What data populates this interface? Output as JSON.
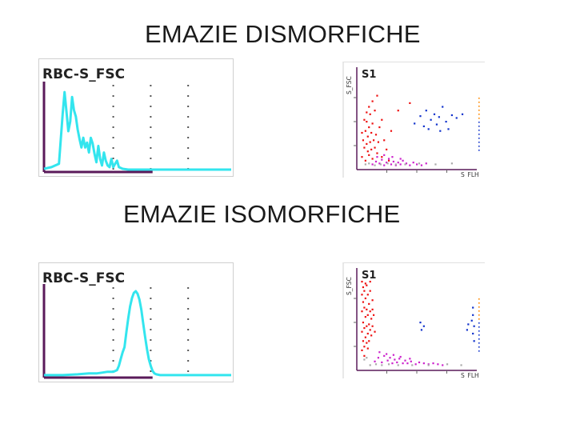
{
  "titles": {
    "dysmorphic": "EMAZIE DISMORFICHE",
    "isomorphic": "EMAZIE ISOMORFICHE"
  },
  "colors": {
    "histogram_line": "#33e5ee",
    "axis": "#5a1a5a",
    "scatter_red": "#ee1111",
    "scatter_magenta": "#cc22cc",
    "scatter_blue": "#1133cc",
    "scatter_orange": "#ff8800",
    "scatter_gray": "#aaaaaa"
  },
  "chart_data": [
    {
      "id": "dys-hist",
      "type": "line",
      "title": "RBC-S_FSC",
      "xlim": [
        0,
        100
      ],
      "ylim": [
        0,
        100
      ],
      "grid": "dotted vertical lines",
      "x": [
        0,
        4,
        8,
        10,
        11,
        12,
        13,
        14,
        15,
        16,
        17,
        18,
        19,
        20,
        21,
        22,
        23,
        24,
        25,
        26,
        27,
        28,
        29,
        30,
        31,
        32,
        33,
        34,
        35,
        36,
        37,
        38,
        39,
        40,
        42,
        45,
        50,
        60,
        80,
        100
      ],
      "y": [
        2,
        4,
        8,
        70,
        96,
        72,
        48,
        60,
        90,
        74,
        66,
        50,
        38,
        28,
        40,
        28,
        34,
        22,
        40,
        33,
        20,
        10,
        30,
        14,
        6,
        22,
        12,
        6,
        4,
        14,
        4,
        8,
        12,
        4,
        2,
        1,
        1,
        1,
        1,
        1
      ]
    },
    {
      "id": "dys-scatter",
      "type": "scatter",
      "title": "S1",
      "xlabel": "S_FLH",
      "ylabel": "S_FSC",
      "xlim": [
        0,
        100
      ],
      "ylim": [
        0,
        100
      ],
      "series": [
        {
          "color": "red",
          "points": [
            [
              3,
              12
            ],
            [
              4,
              30
            ],
            [
              5,
              22
            ],
            [
              6,
              40
            ],
            [
              6,
              8
            ],
            [
              7,
              26
            ],
            [
              7,
              50
            ],
            [
              8,
              18
            ],
            [
              8,
              34
            ],
            [
              9,
              44
            ],
            [
              9,
              14
            ],
            [
              10,
              28
            ],
            [
              10,
              58
            ],
            [
              11,
              20
            ],
            [
              11,
              38
            ],
            [
              12,
              10
            ],
            [
              12,
              48
            ],
            [
              13,
              30
            ],
            [
              14,
              22
            ],
            [
              14,
              62
            ],
            [
              15,
              36
            ],
            [
              16,
              16
            ],
            [
              17,
              28
            ],
            [
              18,
              44
            ],
            [
              20,
              12
            ],
            [
              22,
              30
            ],
            [
              24,
              20
            ],
            [
              26,
              8
            ],
            [
              3,
              38
            ],
            [
              5,
              52
            ],
            [
              7,
              60
            ],
            [
              9,
              66
            ],
            [
              12,
              72
            ],
            [
              16,
              78
            ],
            [
              20,
              52
            ],
            [
              28,
              40
            ],
            [
              34,
              62
            ],
            [
              44,
              70
            ]
          ]
        },
        {
          "color": "magenta",
          "points": [
            [
              12,
              4
            ],
            [
              15,
              7
            ],
            [
              18,
              5
            ],
            [
              20,
              9
            ],
            [
              22,
              3
            ],
            [
              24,
              6
            ],
            [
              26,
              10
            ],
            [
              28,
              4
            ],
            [
              30,
              7
            ],
            [
              32,
              3
            ],
            [
              34,
              6
            ],
            [
              36,
              4
            ],
            [
              38,
              8
            ],
            [
              41,
              5
            ],
            [
              44,
              3
            ],
            [
              47,
              6
            ],
            [
              50,
              4
            ],
            [
              54,
              3
            ],
            [
              58,
              5
            ],
            [
              16,
              12
            ],
            [
              22,
              14
            ],
            [
              29,
              12
            ],
            [
              36,
              10
            ]
          ]
        },
        {
          "color": "blue",
          "points": [
            [
              48,
              48
            ],
            [
              53,
              56
            ],
            [
              56,
              45
            ],
            [
              58,
              62
            ],
            [
              62,
              52
            ],
            [
              65,
              58
            ],
            [
              67,
              47
            ],
            [
              69,
              55
            ],
            [
              72,
              66
            ],
            [
              75,
              50
            ],
            [
              77,
              42
            ],
            [
              80,
              57
            ],
            [
              84,
              54
            ],
            [
              89,
              58
            ],
            [
              70,
              40
            ],
            [
              60,
              42
            ]
          ]
        },
        {
          "color": "gray",
          "points": [
            [
              6,
              4
            ],
            [
              9,
              5
            ],
            [
              14,
              3
            ],
            [
              19,
              4
            ],
            [
              25,
              5
            ],
            [
              32,
              4
            ],
            [
              40,
              4
            ],
            [
              52,
              5
            ],
            [
              66,
              4
            ],
            [
              80,
              5
            ]
          ]
        }
      ]
    },
    {
      "id": "iso-hist",
      "type": "line",
      "title": "RBC-S_FSC",
      "xlim": [
        0,
        100
      ],
      "ylim": [
        0,
        100
      ],
      "grid": "dotted vertical lines",
      "x": [
        0,
        10,
        18,
        24,
        28,
        31,
        34,
        37,
        39,
        40,
        41,
        42,
        43,
        44,
        45,
        46,
        47,
        48,
        49,
        50,
        51,
        52,
        53,
        54,
        55,
        56,
        57,
        58,
        59,
        60,
        62,
        64,
        70,
        80,
        100
      ],
      "y": [
        1,
        1,
        2,
        3,
        3,
        4,
        5,
        5,
        7,
        12,
        20,
        28,
        34,
        52,
        68,
        82,
        92,
        98,
        100,
        97,
        90,
        78,
        62,
        46,
        32,
        20,
        12,
        6,
        3,
        2,
        1,
        1,
        1,
        1,
        1
      ]
    },
    {
      "id": "iso-scatter",
      "type": "scatter",
      "title": "S1",
      "xlabel": "S_FLH",
      "ylabel": "S_FSC",
      "xlim": [
        0,
        100
      ],
      "ylim": [
        0,
        100
      ],
      "series": [
        {
          "color": "red",
          "points": [
            [
              3,
              20
            ],
            [
              3,
              40
            ],
            [
              3,
              62
            ],
            [
              3,
              80
            ],
            [
              4,
              30
            ],
            [
              4,
              50
            ],
            [
              4,
              72
            ],
            [
              4,
              88
            ],
            [
              5,
              24
            ],
            [
              5,
              44
            ],
            [
              5,
              66
            ],
            [
              5,
              84
            ],
            [
              6,
              34
            ],
            [
              6,
              56
            ],
            [
              6,
              76
            ],
            [
              7,
              28
            ],
            [
              7,
              46
            ],
            [
              7,
              64
            ],
            [
              7,
              90
            ],
            [
              8,
              38
            ],
            [
              8,
              58
            ],
            [
              8,
              80
            ],
            [
              9,
              30
            ],
            [
              9,
              48
            ],
            [
              9,
              70
            ],
            [
              10,
              42
            ],
            [
              10,
              62
            ],
            [
              10,
              84
            ],
            [
              11,
              36
            ],
            [
              11,
              54
            ],
            [
              12,
              46
            ],
            [
              12,
              74
            ],
            [
              13,
              58
            ],
            [
              14,
              40
            ],
            [
              3,
              94
            ],
            [
              6,
              92
            ],
            [
              10,
              94
            ],
            [
              12,
              64
            ],
            [
              8,
              22
            ],
            [
              5,
              14
            ]
          ]
        },
        {
          "color": "magenta",
          "points": [
            [
              14,
              8
            ],
            [
              17,
              12
            ],
            [
              20,
              7
            ],
            [
              22,
              14
            ],
            [
              25,
              9
            ],
            [
              27,
              12
            ],
            [
              29,
              6
            ],
            [
              31,
              10
            ],
            [
              33,
              7
            ],
            [
              35,
              11
            ],
            [
              38,
              6
            ],
            [
              40,
              9
            ],
            [
              42,
              6
            ],
            [
              45,
              8
            ],
            [
              49,
              5
            ],
            [
              52,
              7
            ],
            [
              56,
              6
            ],
            [
              60,
              5
            ],
            [
              64,
              6
            ],
            [
              68,
              5
            ],
            [
              72,
              4
            ],
            [
              18,
              18
            ],
            [
              24,
              16
            ],
            [
              30,
              15
            ],
            [
              36,
              13
            ],
            [
              44,
              11
            ]
          ]
        },
        {
          "color": "blue",
          "points": [
            [
              53,
              50
            ],
            [
              56,
              46
            ],
            [
              54,
              42
            ],
            [
              94,
              48
            ],
            [
              93,
              42
            ],
            [
              97,
              52
            ],
            [
              98,
              66
            ],
            [
              98,
              58
            ],
            [
              99,
              46
            ],
            [
              98,
              38
            ],
            [
              99,
              30
            ]
          ]
        },
        {
          "color": "gray",
          "points": [
            [
              10,
              4
            ],
            [
              15,
              5
            ],
            [
              20,
              4
            ],
            [
              26,
              5
            ],
            [
              34,
              4
            ],
            [
              46,
              4
            ],
            [
              60,
              4
            ],
            [
              76,
              5
            ],
            [
              88,
              4
            ],
            [
              5,
              10
            ],
            [
              7,
              12
            ]
          ]
        }
      ]
    }
  ]
}
